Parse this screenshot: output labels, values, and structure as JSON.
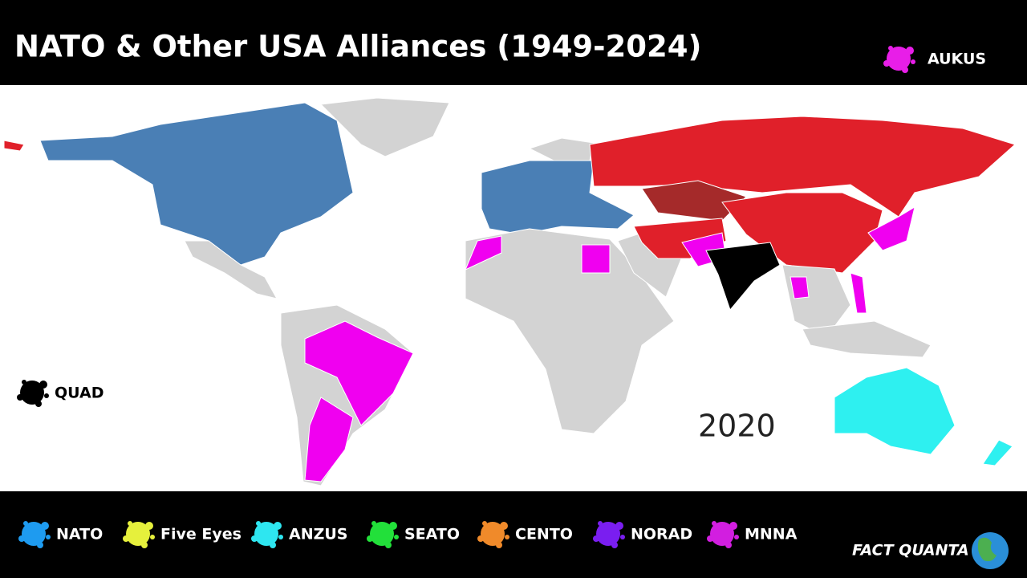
{
  "header": {
    "title": "NATO & Other USA Alliances (1949-2024)",
    "aukus": {
      "label": "AUKUS",
      "color": "#e81ee8"
    }
  },
  "map": {
    "year": "2020",
    "quad": {
      "label": "QUAD",
      "color": "#000000"
    }
  },
  "legend": {
    "items": [
      {
        "label": "NATO",
        "color": "#1e9bf0"
      },
      {
        "label": "Five Eyes",
        "color": "#e6f03c"
      },
      {
        "label": "ANZUS",
        "color": "#2ee6f0"
      },
      {
        "label": "SEATO",
        "color": "#22e03a"
      },
      {
        "label": "CENTO",
        "color": "#f08a2a"
      },
      {
        "label": "NORAD",
        "color": "#7a1ef0"
      },
      {
        "label": "MNNA",
        "color": "#d21ee0"
      }
    ]
  },
  "brand": "FACT QUANTA"
}
